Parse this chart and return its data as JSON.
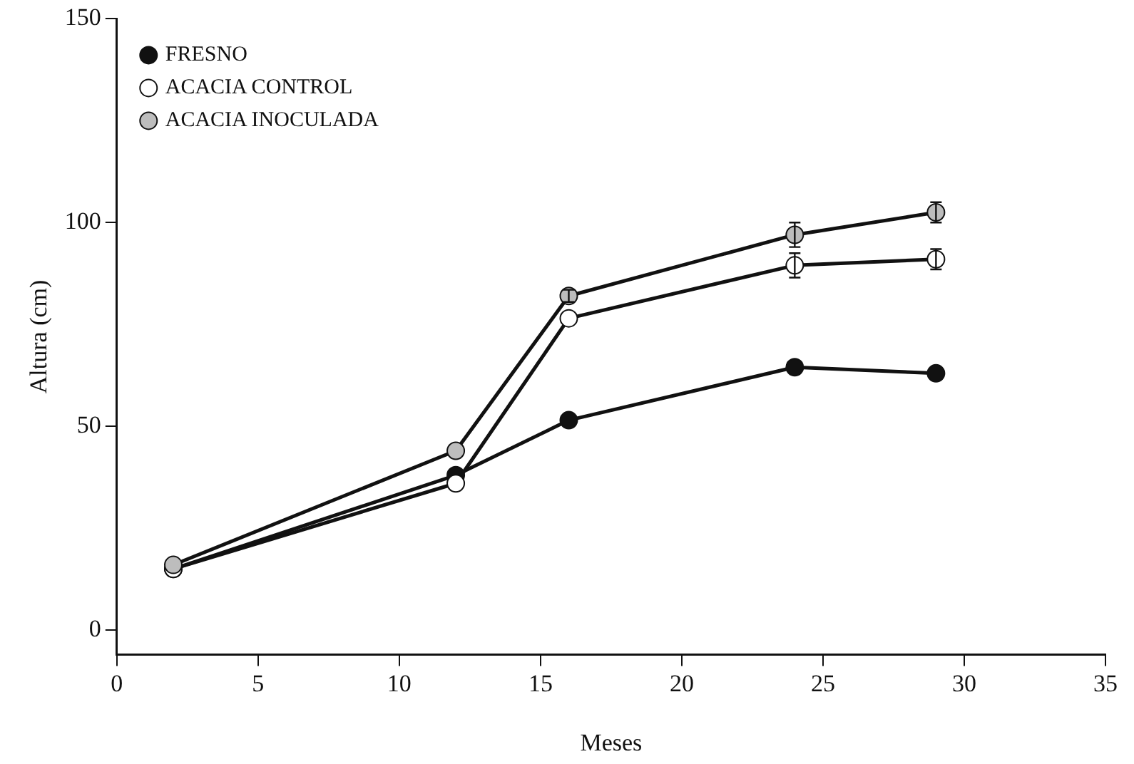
{
  "chart_data": {
    "type": "line",
    "xlabel": "Meses",
    "ylabel": "Altura (cm)",
    "xlim": [
      0,
      35
    ],
    "xticks": [
      0,
      5,
      10,
      15,
      20,
      25,
      30,
      35
    ],
    "ylim": [
      -6,
      150
    ],
    "yticks": [
      0,
      50,
      100,
      150
    ],
    "grid": false,
    "legend": "top left",
    "marker": "circle",
    "line_style": "solid",
    "x": [
      2,
      12,
      16,
      24,
      29
    ],
    "series": [
      {
        "name": "FRESNO",
        "color": "#111111",
        "values": [
          15,
          38,
          51.5,
          64.5,
          63
        ],
        "errors": [
          null,
          null,
          null,
          null,
          null
        ]
      },
      {
        "name": "ACACIA CONTROL",
        "color": "#ffffff",
        "values": [
          15,
          36,
          76.5,
          89.5,
          91
        ],
        "errors": [
          null,
          null,
          null,
          3,
          2.5
        ]
      },
      {
        "name": "ACACIA INOCULADA",
        "color": "#bdbdbd",
        "values": [
          16,
          44,
          82,
          97,
          102.5
        ],
        "errors": [
          null,
          null,
          1.5,
          3,
          2.5
        ]
      }
    ]
  }
}
